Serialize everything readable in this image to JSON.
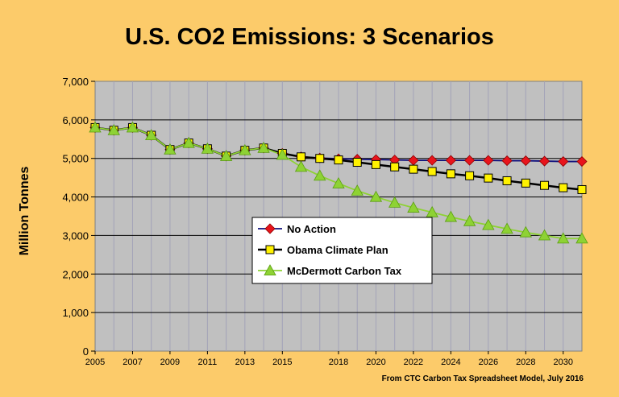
{
  "chart_data": {
    "type": "line",
    "title": "U.S. CO2 Emissions: 3 Scenarios",
    "xlabel": "",
    "ylabel": "Million Tonnes",
    "note": "From CTC Carbon Tax Spreadsheet Model, July 2016",
    "xlim": [
      2005,
      2031
    ],
    "ylim": [
      0,
      7000
    ],
    "x_ticks": [
      "2005",
      "2007",
      "2009",
      "2011",
      "2013",
      "2015",
      "2018",
      "2020",
      "2022",
      "2024",
      "2026",
      "2028",
      "2030"
    ],
    "y_ticks": [
      "0",
      "1,000",
      "2,000",
      "3,000",
      "4,000",
      "5,000",
      "6,000",
      "7,000"
    ],
    "grid": true,
    "legend_position": "lower-middle",
    "x": [
      2005,
      2006,
      2007,
      2008,
      2009,
      2010,
      2011,
      2012,
      2013,
      2014,
      2015,
      2016,
      2017,
      2018,
      2019,
      2020,
      2021,
      2022,
      2023,
      2024,
      2025,
      2026,
      2027,
      2028,
      2029,
      2030,
      2031
    ],
    "series": [
      {
        "name": "No Action",
        "color": "#E8141C",
        "line_color": "#10107C",
        "marker": "diamond",
        "values": [
          5800,
          5730,
          5800,
          5600,
          5230,
          5400,
          5250,
          5060,
          5210,
          5270,
          5130,
          5040,
          5010,
          4990,
          4980,
          4970,
          4960,
          4950,
          4950,
          4950,
          4950,
          4950,
          4940,
          4940,
          4930,
          4920,
          4920
        ]
      },
      {
        "name": "Obama Climate Plan",
        "color": "#FFF200",
        "line_color": "#000000",
        "marker": "square",
        "values": [
          5800,
          5730,
          5800,
          5600,
          5230,
          5400,
          5250,
          5060,
          5210,
          5270,
          5130,
          5040,
          5000,
          4960,
          4900,
          4840,
          4780,
          4720,
          4660,
          4600,
          4550,
          4490,
          4420,
          4360,
          4300,
          4240,
          4190
        ]
      },
      {
        "name": "McDermott Carbon Tax",
        "color": "#8ED234",
        "line_color": "#8ED234",
        "marker": "triangle",
        "values": [
          5800,
          5730,
          5800,
          5600,
          5230,
          5400,
          5250,
          5060,
          5210,
          5270,
          5090,
          4780,
          4550,
          4350,
          4160,
          4000,
          3850,
          3720,
          3600,
          3480,
          3370,
          3270,
          3170,
          3080,
          3000,
          2920,
          2920
        ]
      }
    ]
  }
}
